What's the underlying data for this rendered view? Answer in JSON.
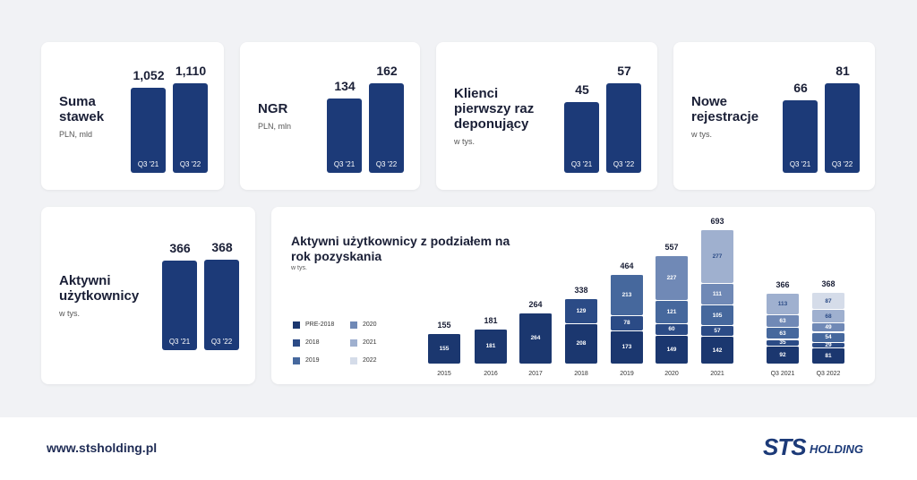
{
  "chart_data": [
    {
      "type": "bar",
      "title": "Suma stawek",
      "subtitle": "PLN, mld",
      "categories": [
        "Q3 '21",
        "Q3 '22"
      ],
      "values": [
        1052,
        1110
      ],
      "value_labels": [
        "1,052",
        "1,110"
      ],
      "color": "#1c3a78"
    },
    {
      "type": "bar",
      "title": "NGR",
      "subtitle": "PLN, mln",
      "categories": [
        "Q3 '21",
        "Q3 '22"
      ],
      "values": [
        134,
        162
      ],
      "color": "#1c3a78"
    },
    {
      "type": "bar",
      "title": "Klienci pierwszy raz deponujący",
      "subtitle": "w tys.",
      "categories": [
        "Q3 '21",
        "Q3 '22"
      ],
      "values": [
        45,
        57
      ],
      "color": "#1c3a78"
    },
    {
      "type": "bar",
      "title": "Nowe rejestracje",
      "subtitle": "w tys.",
      "categories": [
        "Q3 '21",
        "Q3 '22"
      ],
      "values": [
        66,
        81
      ],
      "color": "#1c3a78"
    },
    {
      "type": "bar",
      "title": "Aktywni użytkownicy",
      "subtitle": "w tys.",
      "categories": [
        "Q3 '21",
        "Q3 '22"
      ],
      "values": [
        366,
        368
      ],
      "color": "#1c3a78"
    },
    {
      "type": "stacked-bar",
      "title": "Aktywni użytkownicy z podziałem na rok pozyskania",
      "subtitle": "w tys.",
      "categories": [
        "2015",
        "2016",
        "2017",
        "2018",
        "2019",
        "2020",
        "2021",
        "Q3 2021",
        "Q3 2022"
      ],
      "totals": [
        155,
        181,
        264,
        338,
        464,
        557,
        693,
        366,
        368
      ],
      "series": [
        {
          "name": "PRE-2018",
          "color": "#1b376f",
          "values": [
            155,
            181,
            264,
            208,
            173,
            149,
            142,
            92,
            81
          ]
        },
        {
          "name": "2018",
          "color": "#2b4b86",
          "values": [
            null,
            null,
            null,
            129,
            78,
            60,
            57,
            35,
            29
          ]
        },
        {
          "name": "2019",
          "color": "#46689d",
          "values": [
            null,
            null,
            null,
            null,
            213,
            121,
            105,
            63,
            54
          ]
        },
        {
          "name": "2020",
          "color": "#7089b6",
          "values": [
            null,
            null,
            null,
            null,
            null,
            227,
            111,
            63,
            49
          ]
        },
        {
          "name": "2021",
          "color": "#9fb0cf",
          "values": [
            null,
            null,
            null,
            null,
            null,
            null,
            277,
            113,
            68
          ]
        },
        {
          "name": "2022",
          "color": "#d5dce9",
          "values": [
            null,
            null,
            null,
            null,
            null,
            null,
            null,
            null,
            87
          ]
        }
      ]
    }
  ],
  "footer": {
    "url": "www.stsholding.pl",
    "logo": "STS",
    "logo_sub": "HOLDING"
  }
}
